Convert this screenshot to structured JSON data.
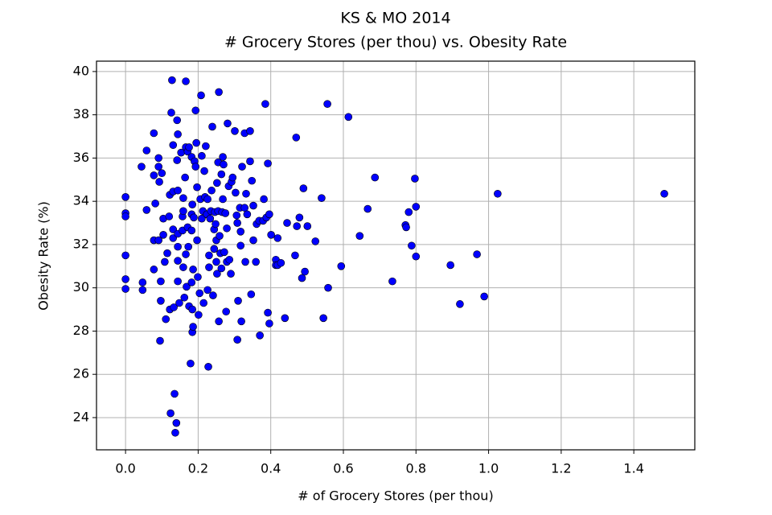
{
  "chart_data": {
    "type": "scatter",
    "title": [
      "KS & MO 2014",
      "# Grocery Stores (per thou) vs. Obesity Rate"
    ],
    "x_label": "# of Grocery Stores (per thou)",
    "y_label": "Obesity Rate (%)",
    "xlim": [
      -0.08,
      1.568
    ],
    "ylim": [
      22.51,
      40.48
    ],
    "xticks": [
      {
        "value": 0,
        "label": "0.0"
      },
      0.2,
      0.4,
      0.6,
      0.8,
      {
        "value": 1,
        "label": "1.0"
      },
      1.2,
      1.4
    ],
    "yticks": [
      24,
      26,
      28,
      30,
      32,
      34,
      36,
      38,
      40
    ],
    "grid": true,
    "series": [
      {
        "color": "#0000ff",
        "x": [
          0,
          0,
          0,
          0,
          0,
          0,
          0.044,
          0.058,
          0.058,
          0.047,
          0.047,
          0.078,
          0.078,
          0.082,
          0.078,
          0.078,
          0.091,
          0.091,
          0.093,
          0.091,
          0.095,
          0.097,
          0.097,
          0.104,
          0.104,
          0.1,
          0.108,
          0.111,
          0.115,
          0.12,
          0.122,
          0.122,
          0.124,
          0.126,
          0.128,
          0.131,
          0.131,
          0.131,
          0.131,
          0.133,
          0.135,
          0.137,
          0.14,
          0.142,
          0.142,
          0.144,
          0.144,
          0.144,
          0.144,
          0.144,
          0.144,
          0.148,
          0.153,
          0.157,
          0.157,
          0.159,
          0.159,
          0.159,
          0.162,
          0.164,
          0.166,
          0.166,
          0.166,
          0.168,
          0.171,
          0.171,
          0.173,
          0.175,
          0.175,
          0.179,
          0.182,
          0.182,
          0.182,
          0.182,
          0.184,
          0.184,
          0.184,
          0.186,
          0.186,
          0.188,
          0.19,
          0.193,
          0.193,
          0.195,
          0.197,
          0.197,
          0.199,
          0.201,
          0.204,
          0.206,
          0.208,
          0.21,
          0.21,
          0.213,
          0.215,
          0.217,
          0.219,
          0.221,
          0.224,
          0.226,
          0.226,
          0.228,
          0.23,
          0.23,
          0.233,
          0.235,
          0.237,
          0.239,
          0.241,
          0.244,
          0.244,
          0.246,
          0.248,
          0.25,
          0.25,
          0.252,
          0.252,
          0.255,
          0.255,
          0.257,
          0.257,
          0.259,
          0.261,
          0.264,
          0.264,
          0.266,
          0.268,
          0.268,
          0.27,
          0.272,
          0.275,
          0.277,
          0.279,
          0.279,
          0.281,
          0.284,
          0.286,
          0.29,
          0.292,
          0.295,
          0.301,
          0.303,
          0.306,
          0.308,
          0.308,
          0.31,
          0.315,
          0.317,
          0.317,
          0.319,
          0.321,
          0.328,
          0.328,
          0.33,
          0.332,
          0.335,
          0.343,
          0.343,
          0.346,
          0.348,
          0.352,
          0.352,
          0.359,
          0.361,
          0.368,
          0.37,
          0.379,
          0.381,
          0.385,
          0.388,
          0.392,
          0.392,
          0.396,
          0.396,
          0.401,
          0.414,
          0.414,
          0.419,
          0.419,
          0.428,
          0.439,
          0.445,
          0.467,
          0.47,
          0.472,
          0.479,
          0.486,
          0.49,
          0.494,
          0.501,
          0.523,
          0.54,
          0.545,
          0.556,
          0.558,
          0.594,
          0.614,
          0.645,
          0.667,
          0.687,
          0.735,
          0.771,
          0.773,
          0.78,
          0.788,
          0.797,
          0.8,
          0.8,
          0.895,
          0.921,
          0.968,
          0.988,
          1.025,
          1.484
        ],
        "values": [
          34.2,
          33.45,
          33.3,
          31.5,
          30.4,
          29.95,
          35.6,
          36.35,
          33.6,
          30.25,
          29.9,
          37.15,
          35.2,
          33.9,
          32.2,
          30.85,
          36.0,
          35.6,
          34.9,
          32.2,
          27.55,
          29.4,
          30.3,
          32.45,
          33.2,
          35.3,
          31.2,
          28.55,
          31.6,
          33.3,
          34.3,
          29.0,
          24.2,
          38.1,
          39.6,
          36.6,
          32.7,
          32.3,
          34.45,
          29.1,
          25.1,
          23.3,
          23.75,
          35.9,
          37.75,
          37.1,
          34.5,
          32.5,
          31.9,
          31.25,
          30.3,
          29.3,
          36.25,
          33.3,
          32.65,
          33.55,
          34.15,
          30.95,
          29.55,
          35.1,
          39.55,
          36.5,
          31.55,
          30.05,
          36.3,
          32.8,
          31.9,
          36.5,
          29.15,
          26.5,
          36.05,
          33.4,
          32.65,
          30.25,
          33.85,
          29.0,
          27.95,
          28.2,
          30.85,
          33.25,
          35.85,
          38.2,
          35.6,
          36.7,
          34.65,
          32.2,
          30.5,
          28.75,
          29.75,
          34.1,
          38.9,
          36.1,
          33.2,
          33.55,
          29.3,
          35.4,
          34.2,
          36.55,
          33.4,
          34.1,
          29.9,
          26.35,
          31.5,
          30.95,
          33.2,
          33.55,
          34.5,
          37.45,
          29.65,
          32.7,
          31.8,
          33.5,
          32.95,
          32.2,
          31.2,
          30.65,
          34.85,
          35.8,
          33.55,
          39.05,
          28.45,
          32.4,
          31.6,
          35.25,
          30.9,
          33.5,
          34.1,
          36.05,
          35.7,
          31.65,
          33.45,
          28.9,
          32.75,
          31.2,
          37.6,
          34.7,
          31.3,
          30.65,
          34.9,
          35.1,
          37.25,
          34.4,
          33.35,
          33.0,
          27.6,
          29.4,
          33.7,
          32.6,
          31.95,
          28.45,
          35.6,
          37.15,
          33.7,
          31.2,
          34.35,
          33.4,
          37.25,
          35.85,
          29.7,
          34.95,
          33.8,
          32.2,
          31.2,
          32.95,
          33.1,
          27.8,
          33.1,
          34.1,
          38.5,
          33.25,
          35.75,
          28.85,
          33.4,
          28.35,
          32.45,
          31.3,
          31.05,
          32.3,
          31.05,
          31.15,
          28.6,
          33.0,
          31.5,
          36.95,
          32.85,
          33.25,
          30.45,
          34.6,
          30.75,
          32.85,
          32.15,
          34.15,
          28.6,
          38.5,
          30.0,
          31.0,
          37.9,
          32.4,
          33.65,
          35.1,
          30.3,
          32.9,
          32.8,
          33.5,
          31.95,
          35.05,
          33.75,
          31.45,
          31.05,
          29.25,
          31.55,
          29.6,
          34.35,
          34.35
        ]
      }
    ]
  }
}
